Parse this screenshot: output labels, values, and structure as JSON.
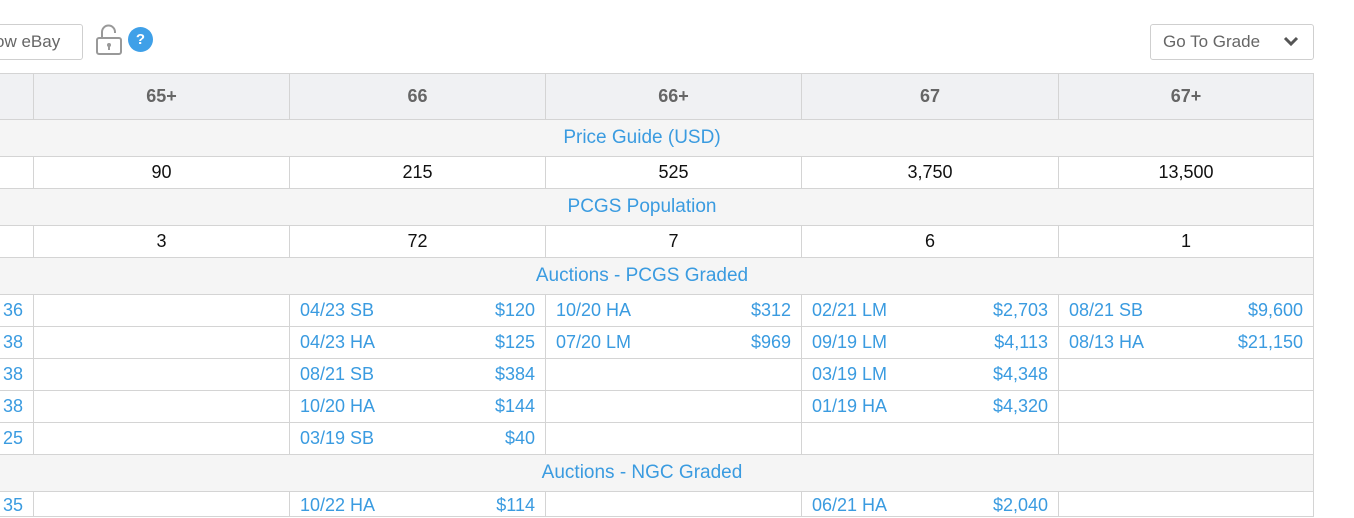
{
  "toolbar": {
    "show_ebay_label": "ow eBay",
    "help_label": "?",
    "go_to_grade_label": "Go To Grade"
  },
  "table": {
    "grades": [
      "65+",
      "66",
      "66+",
      "67",
      "67+"
    ],
    "price_guide_title": "Price Guide (USD)",
    "price_guide": [
      "90",
      "215",
      "525",
      "3,750",
      "13,500"
    ],
    "population_title": "PCGS Population",
    "population": [
      "3",
      "72",
      "7",
      "6",
      "1"
    ],
    "auctions_pcgs_title": "Auctions - PCGS Graded",
    "auctions_pcgs_rows": [
      {
        "first": "36",
        "cells": [
          null,
          {
            "d": "04/23 SB",
            "p": "$120"
          },
          {
            "d": "10/20 HA",
            "p": "$312"
          },
          {
            "d": "02/21 LM",
            "p": "$2,703"
          },
          {
            "d": "08/21 SB",
            "p": "$9,600"
          }
        ]
      },
      {
        "first": "38",
        "cells": [
          null,
          {
            "d": "04/23 HA",
            "p": "$125"
          },
          {
            "d": "07/20 LM",
            "p": "$969"
          },
          {
            "d": "09/19 LM",
            "p": "$4,113"
          },
          {
            "d": "08/13 HA",
            "p": "$21,150"
          }
        ]
      },
      {
        "first": "38",
        "cells": [
          null,
          {
            "d": "08/21 SB",
            "p": "$384"
          },
          null,
          {
            "d": "03/19 LM",
            "p": "$4,348"
          },
          null
        ]
      },
      {
        "first": "38",
        "cells": [
          null,
          {
            "d": "10/20 HA",
            "p": "$144"
          },
          null,
          {
            "d": "01/19 HA",
            "p": "$4,320"
          },
          null
        ]
      },
      {
        "first": "25",
        "cells": [
          null,
          {
            "d": "03/19 SB",
            "p": "$40"
          },
          null,
          null,
          null
        ]
      }
    ],
    "auctions_ngc_title": "Auctions - NGC Graded",
    "auctions_ngc_rows": [
      {
        "first": "35",
        "cells": [
          null,
          {
            "d": "10/22 HA",
            "p": "$114"
          },
          null,
          {
            "d": "06/21 HA",
            "p": "$2,040"
          },
          null
        ]
      }
    ]
  }
}
